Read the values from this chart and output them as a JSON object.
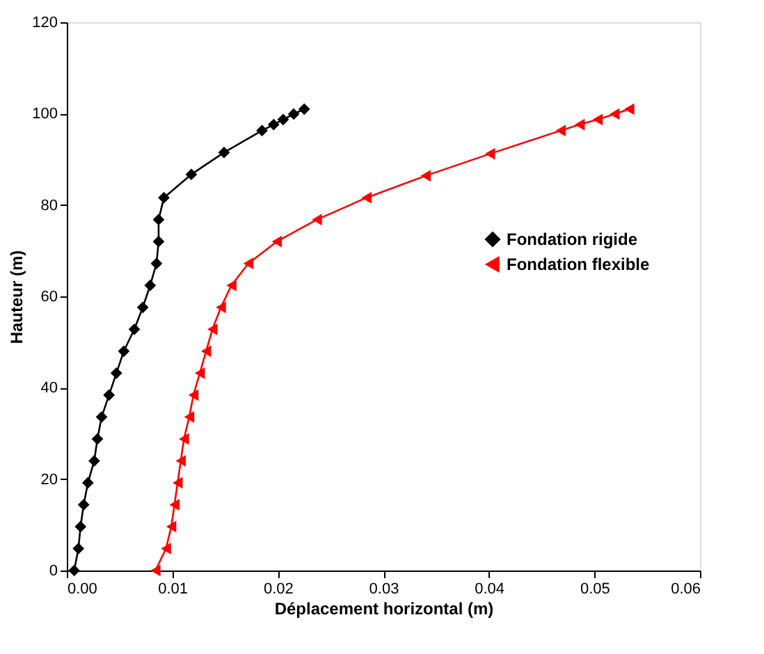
{
  "chart_data": {
    "type": "line",
    "xlabel": "Déplacement horizontal (m)",
    "ylabel": "Hauteur (m)",
    "xlim": [
      0,
      0.06
    ],
    "ylim": [
      0,
      120
    ],
    "xticks": [
      {
        "value": 0,
        "label": "0.00"
      },
      {
        "value": 0.01,
        "label": "0.01"
      },
      {
        "value": 0.02,
        "label": "0.02"
      },
      {
        "value": 0.03,
        "label": "0.03"
      },
      {
        "value": 0.04,
        "label": "0.04"
      },
      {
        "value": 0.05,
        "label": "0.05"
      },
      {
        "value": 0.06,
        "label": "0.06"
      }
    ],
    "yticks": [
      0,
      20,
      40,
      60,
      80,
      100,
      120
    ],
    "line_style": "solid",
    "grid": false,
    "legend": "right",
    "series": [
      {
        "name": "Fondation rigide",
        "color": "#000000",
        "marker": "diamond",
        "values": [
          0,
          4.8,
          9.6,
          14.4,
          19.2,
          24,
          28.8,
          33.6,
          38.4,
          43.2,
          48,
          52.8,
          57.6,
          62.4,
          67.2,
          72,
          76.8,
          81.6,
          86.7,
          91.5,
          96.3,
          97.6,
          98.7,
          99.9,
          101
        ],
        "x": [
          0.0007,
          0.0011,
          0.0013,
          0.0016,
          0.002,
          0.0026,
          0.0029,
          0.0033,
          0.004,
          0.0047,
          0.0054,
          0.0064,
          0.0072,
          0.0079,
          0.0085,
          0.0087,
          0.0087,
          0.0092,
          0.0118,
          0.0149,
          0.0185,
          0.0196,
          0.0205,
          0.0215,
          0.0225
        ]
      },
      {
        "name": "Fondation flexible",
        "color": "#ff0000",
        "marker": "triangle",
        "values": [
          0,
          4.8,
          9.6,
          14.4,
          19.2,
          24,
          28.8,
          33.6,
          38.4,
          43.2,
          48,
          52.8,
          57.6,
          62.4,
          67.2,
          72,
          76.8,
          81.6,
          86.4,
          91.2,
          96.3,
          97.6,
          98.7,
          99.9,
          101
        ],
        "x": [
          0.0084,
          0.0094,
          0.0099,
          0.0102,
          0.0105,
          0.0108,
          0.0111,
          0.0116,
          0.012,
          0.0126,
          0.0132,
          0.0138,
          0.0146,
          0.0156,
          0.0172,
          0.0199,
          0.0237,
          0.0284,
          0.034,
          0.0401,
          0.0468,
          0.0486,
          0.0503,
          0.0519,
          0.0533
        ]
      }
    ]
  }
}
